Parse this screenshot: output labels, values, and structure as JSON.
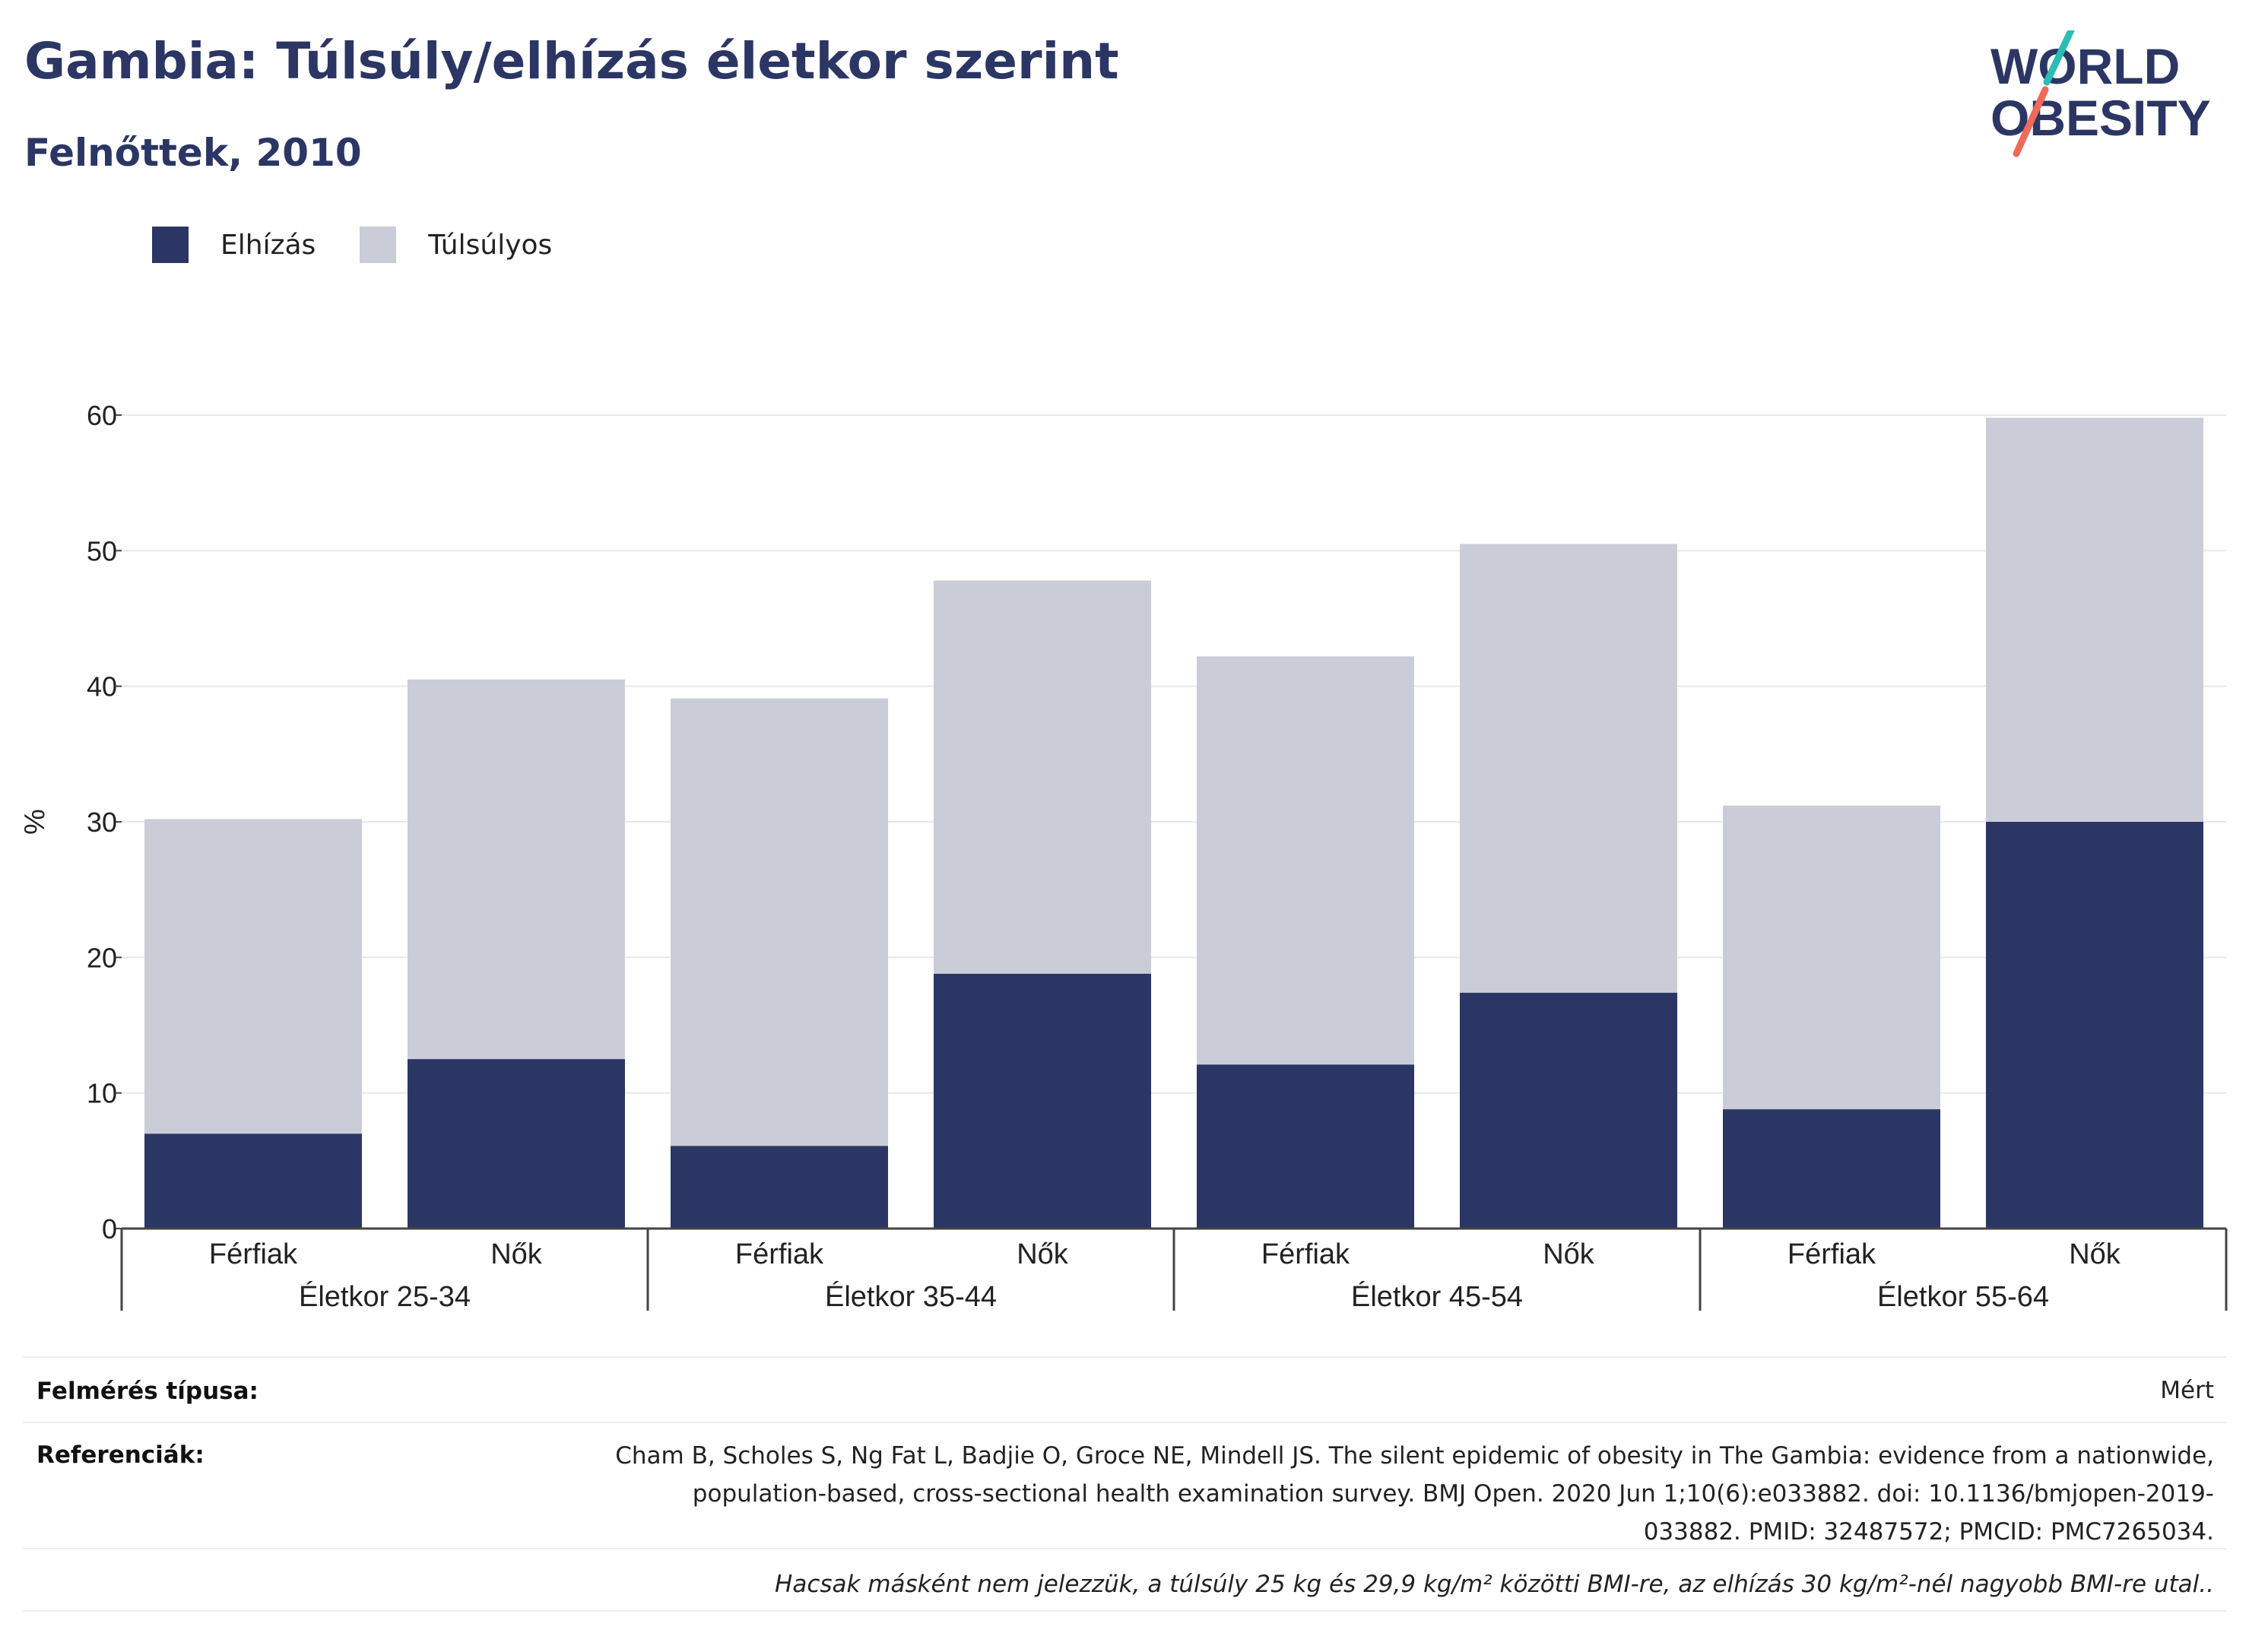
{
  "title": "Gambia: Túlsúly/elhízás életkor szerint",
  "subtitle": "Felnőttek, 2010",
  "logo": {
    "line1": "WORLD",
    "line2": "OBESITY"
  },
  "legend": [
    {
      "label": "Elhízás",
      "color": "#2b3664"
    },
    {
      "label": "Túlsúlyos",
      "color": "#cacdd8"
    }
  ],
  "chart_data": {
    "type": "bar",
    "stacked": true,
    "ylabel": "%",
    "ylim": [
      0,
      60
    ],
    "yticks": [
      0,
      10,
      20,
      30,
      40,
      50,
      60
    ],
    "grid": true,
    "legend_position": "top-left",
    "groups": [
      "Életkor 25-34",
      "Életkor 35-44",
      "Életkor 45-54",
      "Életkor 55-64"
    ],
    "categories": [
      "Férfiak",
      "Nők",
      "Férfiak",
      "Nők",
      "Férfiak",
      "Nők",
      "Férfiak",
      "Nők"
    ],
    "series": [
      {
        "name": "Elhízás",
        "color": "#2b3664",
        "values": [
          7.0,
          12.5,
          6.1,
          18.8,
          12.1,
          17.4,
          8.8,
          30.0
        ]
      },
      {
        "name": "Túlsúlyos",
        "color": "#cacdd8",
        "values": [
          23.2,
          28.0,
          33.0,
          29.0,
          30.1,
          33.1,
          22.4,
          29.8
        ]
      }
    ]
  },
  "meta": {
    "survey_label": "Felmérés típusa:",
    "survey_value": "Mért",
    "ref_label": "Referenciák:",
    "ref_lines": [
      "Cham B, Scholes S, Ng Fat L, Badjie O, Groce NE, Mindell JS. The silent epidemic of obesity in The Gambia: evidence from a nationwide,",
      "population-based, cross-sectional health examination survey. BMJ Open. 2020 Jun 1;10(6):e033882. doi: 10.1136/bmjopen-2019-",
      "033882. PMID: 32487572; PMCID: PMC7265034."
    ],
    "note": "Hacsak másként nem jelezzük, a túlsúly 25 kg és 29,9 kg/m² közötti BMI-re, az elhízás 30 kg/m²-nél nagyobb BMI-re utal.."
  }
}
